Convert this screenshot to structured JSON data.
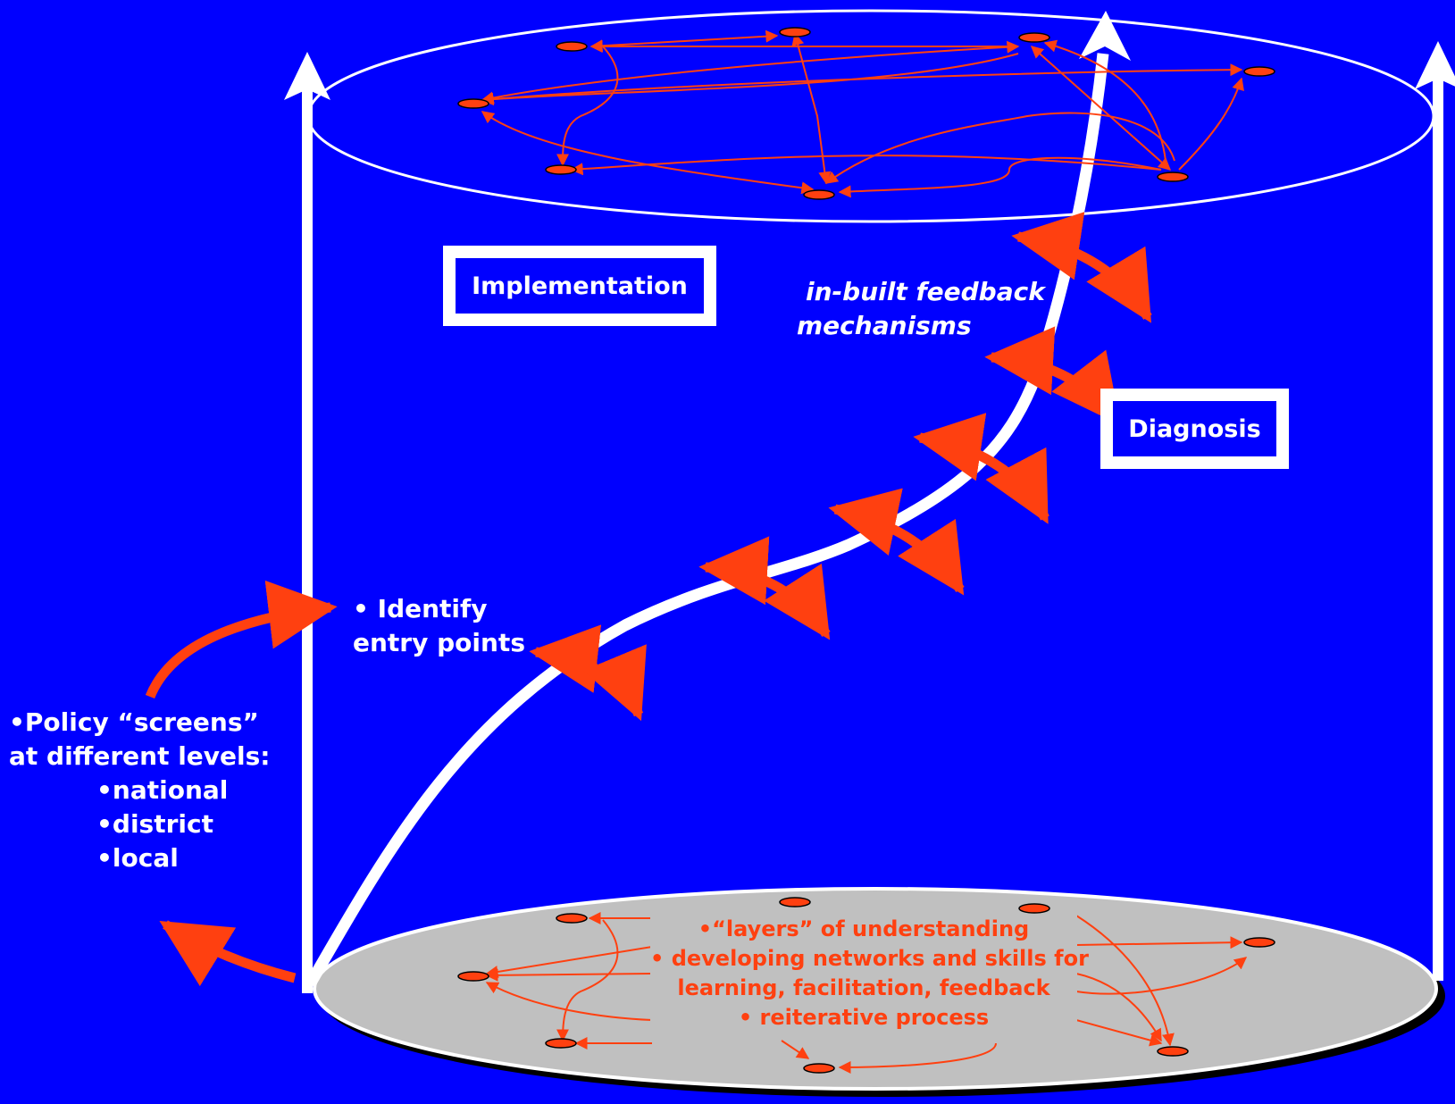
{
  "labels": {
    "implementation": "Implementation",
    "diagnosis": "Diagnosis",
    "feedback_line1": "in-built feedback",
    "feedback_line2": "mechanisms",
    "identify_line1": "• Identify",
    "identify_line2": "entry points",
    "policy": {
      "line1": "•Policy “screens”",
      "line2": "at different levels:",
      "items": [
        "•national",
        "•district",
        "•local"
      ]
    },
    "bottom": {
      "line1": "•“layers” of understanding",
      "line2": "• developing networks and skills for",
      "line3": "learning, facilitation, feedback",
      "line4": "• reiterative process"
    }
  },
  "colors": {
    "background": "#0000FF",
    "white": "#FFFFFF",
    "accent": "#FF4010",
    "disc": "#C0C0C0"
  }
}
